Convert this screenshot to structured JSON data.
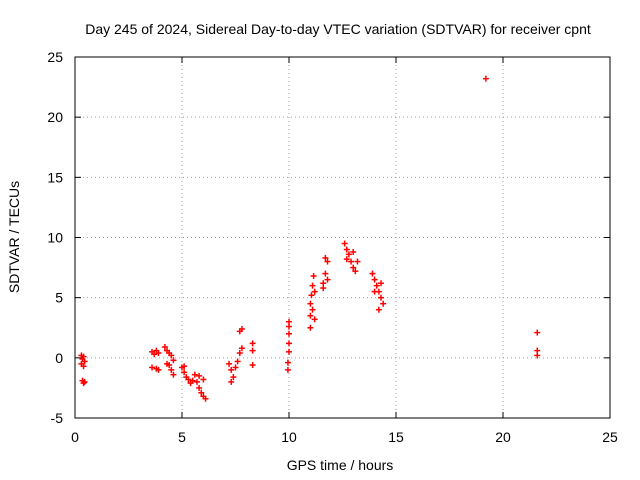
{
  "chart_data": {
    "type": "scatter",
    "title": "Day 245 of 2024, Sidereal Day-to-day VTEC variation (SDTVAR) for receiver cpnt",
    "xlabel": "GPS time / hours",
    "ylabel": "SDTVAR / TECUs",
    "xlim": [
      0,
      25
    ],
    "ylim": [
      -5,
      25
    ],
    "xticks": [
      0,
      5,
      10,
      15,
      20,
      25
    ],
    "yticks": [
      -5,
      0,
      5,
      10,
      15,
      20,
      25
    ],
    "grid": true,
    "marker": "+",
    "marker_color": "#ff0000",
    "series": [
      {
        "name": "SDTVAR",
        "points": [
          [
            0.3,
            0.2
          ],
          [
            0.35,
            -0.1
          ],
          [
            0.4,
            0.1
          ],
          [
            0.45,
            -0.3
          ],
          [
            0.3,
            -0.5
          ],
          [
            0.4,
            -0.7
          ],
          [
            0.35,
            -1.9
          ],
          [
            0.4,
            -2.1
          ],
          [
            0.45,
            -2.0
          ],
          [
            3.6,
            0.5
          ],
          [
            3.7,
            0.3
          ],
          [
            3.8,
            0.6
          ],
          [
            3.9,
            0.4
          ],
          [
            3.6,
            -0.8
          ],
          [
            3.8,
            -0.9
          ],
          [
            3.9,
            -1.0
          ],
          [
            4.2,
            0.9
          ],
          [
            4.3,
            0.6
          ],
          [
            4.4,
            0.4
          ],
          [
            4.5,
            0.2
          ],
          [
            4.6,
            -0.2
          ],
          [
            4.4,
            -0.6
          ],
          [
            4.5,
            -1.0
          ],
          [
            4.6,
            -1.4
          ],
          [
            4.3,
            -0.5
          ],
          [
            5.0,
            -0.8
          ],
          [
            5.1,
            -1.2
          ],
          [
            5.2,
            -1.6
          ],
          [
            5.3,
            -1.8
          ],
          [
            5.4,
            -2.1
          ],
          [
            5.5,
            -1.9
          ],
          [
            5.1,
            -0.7
          ],
          [
            5.6,
            -1.4
          ],
          [
            5.7,
            -2.0
          ],
          [
            5.8,
            -2.5
          ],
          [
            5.9,
            -2.9
          ],
          [
            6.0,
            -3.2
          ],
          [
            6.1,
            -3.4
          ],
          [
            5.8,
            -1.5
          ],
          [
            6.0,
            -1.8
          ],
          [
            7.2,
            -0.5
          ],
          [
            7.3,
            -1.0
          ],
          [
            7.4,
            -1.6
          ],
          [
            7.5,
            -0.8
          ],
          [
            7.6,
            -0.3
          ],
          [
            7.7,
            0.4
          ],
          [
            7.8,
            0.8
          ],
          [
            7.3,
            -2.0
          ],
          [
            7.7,
            2.2
          ],
          [
            7.8,
            2.4
          ],
          [
            8.3,
            1.2
          ],
          [
            8.3,
            0.6
          ],
          [
            8.3,
            -0.6
          ],
          [
            10.0,
            3.0
          ],
          [
            10.0,
            2.6
          ],
          [
            10.0,
            2.0
          ],
          [
            10.0,
            1.2
          ],
          [
            10.0,
            0.5
          ],
          [
            9.95,
            -0.4
          ],
          [
            9.95,
            -1.0
          ],
          [
            11.0,
            2.5
          ],
          [
            11.0,
            3.5
          ],
          [
            11.0,
            4.5
          ],
          [
            11.05,
            5.2
          ],
          [
            11.1,
            6.0
          ],
          [
            11.15,
            6.8
          ],
          [
            11.2,
            5.5
          ],
          [
            11.1,
            4.0
          ],
          [
            11.2,
            3.2
          ],
          [
            11.6,
            6.2
          ],
          [
            11.7,
            7.0
          ],
          [
            11.8,
            8.0
          ],
          [
            11.6,
            5.8
          ],
          [
            11.8,
            6.5
          ],
          [
            11.7,
            8.3
          ],
          [
            12.6,
            9.5
          ],
          [
            12.7,
            9.0
          ],
          [
            12.8,
            8.6
          ],
          [
            12.9,
            8.0
          ],
          [
            13.0,
            7.5
          ],
          [
            13.1,
            7.2
          ],
          [
            13.2,
            8.0
          ],
          [
            12.7,
            8.2
          ],
          [
            13.0,
            8.8
          ],
          [
            13.9,
            7.0
          ],
          [
            14.0,
            6.5
          ],
          [
            14.1,
            6.0
          ],
          [
            14.2,
            5.5
          ],
          [
            14.3,
            5.0
          ],
          [
            14.4,
            4.5
          ],
          [
            14.2,
            4.0
          ],
          [
            14.0,
            5.5
          ],
          [
            14.3,
            6.2
          ],
          [
            19.2,
            23.2
          ],
          [
            21.6,
            2.1
          ],
          [
            21.6,
            0.6
          ],
          [
            21.6,
            0.2
          ]
        ]
      }
    ]
  }
}
